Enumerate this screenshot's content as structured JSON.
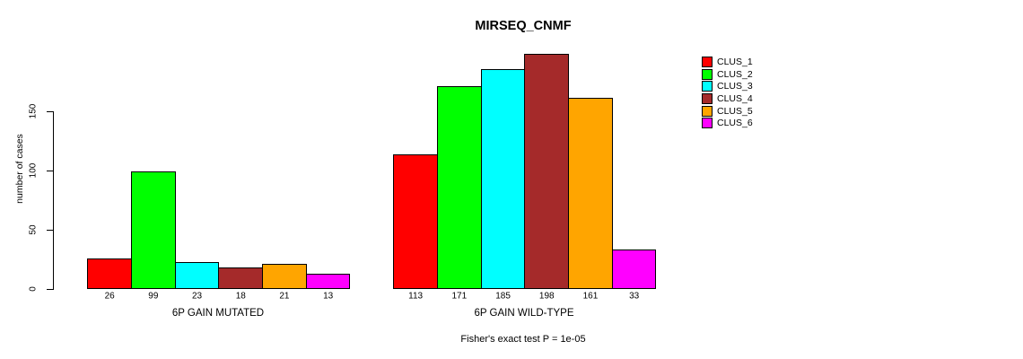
{
  "chart_data": {
    "type": "bar",
    "title": "MIRSEQ_CNMF",
    "ylabel": "number of cases",
    "xlabel": "",
    "yticks": [
      0,
      50,
      100,
      150
    ],
    "ylim": [
      0,
      208
    ],
    "grid": false,
    "legend_position": "right",
    "bar_border_color": "#000000",
    "categories": [
      "6P GAIN MUTATED",
      "6P GAIN WILD-TYPE"
    ],
    "series": [
      {
        "name": "CLUS_1",
        "color": "#FF0000",
        "values": [
          26,
          113
        ]
      },
      {
        "name": "CLUS_2",
        "color": "#00FF00",
        "values": [
          99,
          171
        ]
      },
      {
        "name": "CLUS_3",
        "color": "#00FFFF",
        "values": [
          23,
          185
        ]
      },
      {
        "name": "CLUS_4",
        "color": "#A52A2A",
        "values": [
          18,
          198
        ]
      },
      {
        "name": "CLUS_5",
        "color": "#FFA500",
        "values": [
          21,
          161
        ]
      },
      {
        "name": "CLUS_6",
        "color": "#FF00FF",
        "values": [
          13,
          33
        ]
      }
    ],
    "value_labels_shown": true,
    "annotation": "Fisher's exact test P = 1e-05"
  }
}
